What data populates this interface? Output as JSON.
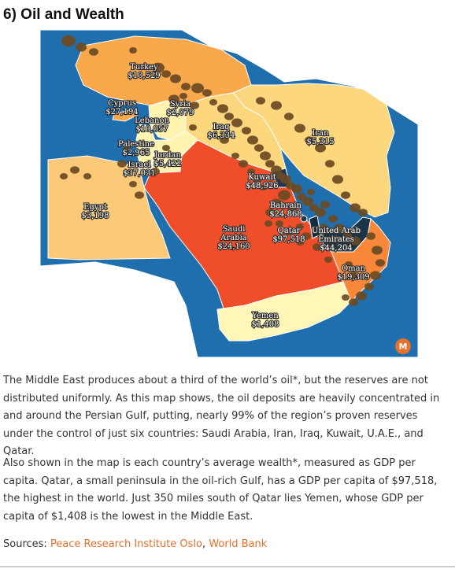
{
  "title": "6) Oil and Wealth",
  "map": {
    "colors": {
      "sea": "#1f6fae",
      "land_other": "#ffffff",
      "egypt": "#fcc979",
      "turkey": "#f9a94b",
      "iran": "#fcd77e",
      "iraq": "#fcd77e",
      "syria": "#fff3b0",
      "jordan": "#fff3b0",
      "saudi": "#f04e2a",
      "kuwait": "#1f3550",
      "qatar": "#152b3d",
      "uae": "#1b3448",
      "yemen": "#fff6b8",
      "oman": "#f8873a",
      "bahrain": "#1f3550",
      "oil": "#6b4a23",
      "badge": "#e8702a"
    },
    "labels": {
      "turkey": [
        "Turkey",
        "$10,529"
      ],
      "cyprus": [
        "Cyprus",
        "$27,194"
      ],
      "syria": [
        "Syria",
        "$2,079"
      ],
      "lebanon": [
        "Lebanon",
        "$10,057"
      ],
      "iraq": [
        "Iraq",
        "$6,334"
      ],
      "iran": [
        "Iran",
        "$5,315"
      ],
      "palestine": [
        "Palestine",
        "$2,965"
      ],
      "jordan": [
        "Jordan",
        "$5,422"
      ],
      "israel": [
        "Israel",
        "$37,031"
      ],
      "kuwait": [
        "Kuwait",
        "$48,926"
      ],
      "egypt": [
        "Egypt",
        "$3,198"
      ],
      "bahrain": [
        "Bahrain",
        "$24,868"
      ],
      "saudi": [
        "Saudi",
        "Arabia",
        "$24,160"
      ],
      "qatar": [
        "Qatar",
        "$97,518"
      ],
      "uae": [
        "United Arab",
        "Emirates",
        "$44,204"
      ],
      "oman": [
        "Oman",
        "$19,309"
      ],
      "yemen": [
        "Yemen",
        "$1,408"
      ]
    },
    "badge_icon": "mapped-logo-icon",
    "badge_letter": "M"
  },
  "paragraphs": [
    "The Middle East produces about a third of the world’s oil*, but the reserves are not distributed uniformly. As this map shows, the oil deposits are heavily concentrated in and around the Persian Gulf, putting, nearly 99% of the region’s proven reserves under the control of just six countries: Saudi Arabia, Iran, Iraq, Kuwait, U.A.E., and Qatar.",
    "Also shown in the map is each country’s average wealth*, measured as GDP per capita. Qatar, a small peninsula in the oil-rich Gulf, has a GDP per capita of $97,518, the highest in the world. Just 350 miles south of Qatar lies Yemen, whose GDP per capita of $1,408 is the lowest in the Middle East."
  ],
  "sources": {
    "prefix": "Sources: ",
    "link1": "Peace Research Institute Oslo",
    "separator": ", ",
    "link2": "World Bank"
  }
}
